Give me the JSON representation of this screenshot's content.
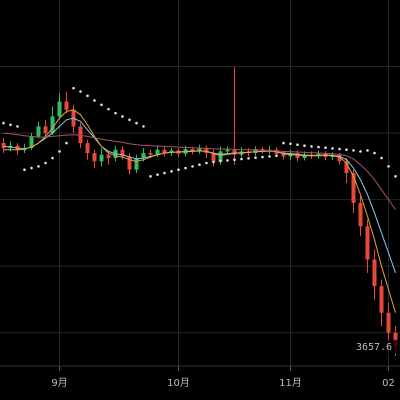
{
  "chart_data": {
    "type": "candlestick",
    "categories": [
      null,
      null,
      null,
      null,
      null,
      null,
      null,
      null,
      "9月",
      null,
      null,
      null,
      null,
      null,
      null,
      null,
      null,
      null,
      null,
      null,
      null,
      null,
      null,
      null,
      null,
      "10月",
      null,
      null,
      null,
      null,
      null,
      null,
      null,
      null,
      null,
      null,
      null,
      null,
      null,
      null,
      null,
      "11月",
      null,
      null,
      null,
      null,
      null,
      null,
      null,
      null,
      null,
      null,
      null,
      null,
      null,
      "02",
      null
    ],
    "open": [
      4270,
      4255,
      4262,
      4248,
      4255,
      4290,
      4320,
      4300,
      4350,
      4395,
      4370,
      4320,
      4270,
      4240,
      4215,
      4235,
      4225,
      4250,
      4230,
      4190,
      4225,
      4240,
      4235,
      4250,
      4240,
      4248,
      4238,
      4252,
      4245,
      4255,
      4240,
      4215,
      4245,
      4250,
      4235,
      4245,
      4240,
      4252,
      4245,
      4250,
      4238,
      4230,
      4240,
      4225,
      4235,
      4230,
      4238,
      4228,
      4235,
      4215,
      4180,
      4090,
      4020,
      3920,
      3840,
      3760,
      3700
    ],
    "high": [
      4285,
      4275,
      4270,
      4268,
      4300,
      4335,
      4340,
      4380,
      4420,
      4425,
      4385,
      4330,
      4280,
      4250,
      4255,
      4245,
      4262,
      4260,
      4240,
      4235,
      4255,
      4250,
      4262,
      4258,
      4255,
      4255,
      4262,
      4258,
      4265,
      4262,
      4250,
      4260,
      4260,
      4498,
      4258,
      4255,
      4260,
      4258,
      4262,
      4256,
      4245,
      4250,
      4248,
      4245,
      4245,
      4248,
      4245,
      4242,
      4240,
      4225,
      4190,
      4110,
      4040,
      3950,
      3860,
      3790,
      3720
    ],
    "low": [
      4240,
      4245,
      4235,
      4240,
      4250,
      4285,
      4290,
      4295,
      4340,
      4360,
      4300,
      4255,
      4220,
      4195,
      4200,
      4205,
      4215,
      4220,
      4175,
      4180,
      4215,
      4225,
      4228,
      4230,
      4232,
      4228,
      4230,
      4236,
      4238,
      4225,
      4200,
      4205,
      4238,
      4205,
      4228,
      4230,
      4232,
      4238,
      4236,
      4228,
      4220,
      4218,
      4215,
      4218,
      4222,
      4222,
      4218,
      4220,
      4205,
      4150,
      4060,
      3990,
      3880,
      3800,
      3720,
      3640,
      3630
    ],
    "close": [
      4255,
      4262,
      4248,
      4255,
      4290,
      4320,
      4300,
      4350,
      4395,
      4370,
      4320,
      4270,
      4240,
      4215,
      4235,
      4225,
      4250,
      4230,
      4190,
      4225,
      4240,
      4235,
      4250,
      4240,
      4248,
      4238,
      4252,
      4245,
      4255,
      4240,
      4215,
      4245,
      4250,
      4235,
      4245,
      4240,
      4252,
      4245,
      4250,
      4238,
      4230,
      4240,
      4225,
      4235,
      4230,
      4238,
      4228,
      4235,
      4215,
      4180,
      4090,
      4020,
      3920,
      3840,
      3760,
      3700,
      3657.6
    ],
    "up_color": "#2fbf5f",
    "down_color": "#e8473b",
    "lines": [
      {
        "color": "#7fd0e6",
        "style": "solid",
        "values": [
          4260,
          4258,
          4255,
          4253,
          4258,
          4270,
          4285,
          4300,
          4320,
          4340,
          4345,
          4335,
          4310,
          4285,
          4260,
          4245,
          4238,
          4235,
          4228,
          4222,
          4225,
          4230,
          4235,
          4240,
          4242,
          4243,
          4244,
          4245,
          4246,
          4245,
          4240,
          4236,
          4238,
          4240,
          4241,
          4242,
          4244,
          4245,
          4246,
          4244,
          4240,
          4238,
          4236,
          4234,
          4233,
          4233,
          4234,
          4233,
          4230,
          4220,
          4195,
          4160,
          4115,
          4060,
          4000,
          3940,
          3880
        ]
      },
      {
        "color": "#e8a13a",
        "style": "solid",
        "values": [
          4250,
          4250,
          4250,
          4252,
          4258,
          4270,
          4290,
          4315,
          4345,
          4365,
          4370,
          4355,
          4325,
          4290,
          4260,
          4240,
          4232,
          4228,
          4220,
          4215,
          4220,
          4228,
          4235,
          4240,
          4242,
          4243,
          4245,
          4246,
          4247,
          4245,
          4238,
          4233,
          4236,
          4239,
          4240,
          4242,
          4244,
          4245,
          4246,
          4244,
          4238,
          4235,
          4234,
          4232,
          4232,
          4232,
          4233,
          4232,
          4228,
          4210,
          4170,
          4115,
          4050,
          3980,
          3900,
          3830,
          3760
        ]
      },
      {
        "color": "#b0506a",
        "style": "solid",
        "values": [
          4300,
          4298,
          4295,
          4292,
          4290,
          4288,
          4288,
          4290,
          4292,
          4294,
          4295,
          4293,
          4290,
          4286,
          4282,
          4278,
          4275,
          4272,
          4268,
          4265,
          4263,
          4262,
          4261,
          4260,
          4259,
          4258,
          4257,
          4256,
          4255,
          4254,
          4253,
          4252,
          4252,
          4251,
          4250,
          4250,
          4249,
          4248,
          4247,
          4246,
          4245,
          4244,
          4243,
          4242,
          4241,
          4240,
          4239,
          4238,
          4236,
          4232,
          4222,
          4205,
          4185,
          4160,
          4130,
          4100,
          4070
        ]
      },
      {
        "color": "#e0e0e0",
        "style": "dots",
        "values": [
          4330,
          4325,
          4320,
          4190,
          4195,
          4200,
          4210,
          4225,
          4245,
          4270,
          4435,
          4425,
          4412,
          4398,
          4385,
          4372,
          4360,
          4350,
          4340,
          4330,
          4320,
          4170,
          4175,
          4180,
          4185,
          4190,
          4195,
          4200,
          4205,
          4210,
          4213,
          4216,
          4218,
          4220,
          4222,
          4224,
          4226,
          4228,
          4230,
          4232,
          4270,
          4268,
          4265,
          4262,
          4260,
          4258,
          4256,
          4254,
          4252,
          4250,
          4248,
          4245,
          4248,
          4240,
          4225,
          4200,
          4170
        ]
      }
    ],
    "ylim": [
      3600,
      4700
    ],
    "yticks": [
      3700,
      3900,
      4100,
      4300,
      4500
    ],
    "grid": true
  }
}
